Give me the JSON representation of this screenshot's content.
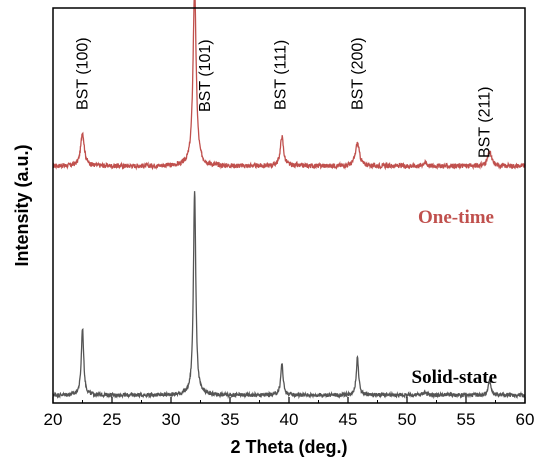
{
  "chart_data": {
    "type": "line",
    "xlabel": "2 Theta (deg.)",
    "ylabel": "Intensity (a.u.)",
    "xlim": [
      20,
      60
    ],
    "xticks": [
      20,
      25,
      30,
      35,
      40,
      45,
      50,
      55,
      60
    ],
    "grid": false,
    "y_ticks_shown": false,
    "peak_annotations": [
      {
        "label": "BST (100)",
        "x": 22.5
      },
      {
        "label": "BST (101)",
        "x": 32.1
      },
      {
        "label": "BST (111)",
        "x": 39.3
      },
      {
        "label": "BST (200)",
        "x": 45.8
      },
      {
        "label": "BST (211)",
        "x": 57.0
      }
    ],
    "series": [
      {
        "name": "One-time",
        "color": "#c0504d",
        "baseline": 0.6,
        "noise": 0.006,
        "peaks": [
          {
            "x": 22.5,
            "height": 0.085,
            "width": 0.18
          },
          {
            "x": 32.0,
            "height": 0.45,
            "width": 0.16
          },
          {
            "x": 39.4,
            "height": 0.075,
            "width": 0.16
          },
          {
            "x": 45.8,
            "height": 0.058,
            "width": 0.2
          },
          {
            "x": 51.5,
            "height": 0.008,
            "width": 0.2
          },
          {
            "x": 57.0,
            "height": 0.035,
            "width": 0.2
          }
        ]
      },
      {
        "name": "Solid-state",
        "color": "#555555",
        "baseline": 0.02,
        "noise": 0.005,
        "peaks": [
          {
            "x": 22.5,
            "height": 0.17,
            "width": 0.12
          },
          {
            "x": 32.0,
            "height": 0.52,
            "width": 0.12
          },
          {
            "x": 39.4,
            "height": 0.08,
            "width": 0.12
          },
          {
            "x": 45.8,
            "height": 0.095,
            "width": 0.12
          },
          {
            "x": 51.5,
            "height": 0.008,
            "width": 0.15
          },
          {
            "x": 57.0,
            "height": 0.038,
            "width": 0.12
          }
        ]
      }
    ]
  }
}
